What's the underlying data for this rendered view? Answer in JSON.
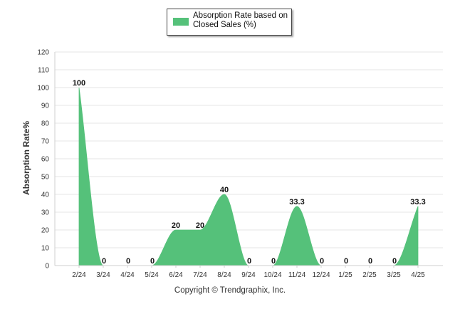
{
  "chart_data": {
    "type": "area",
    "categories": [
      "2/24",
      "3/24",
      "4/24",
      "5/24",
      "6/24",
      "7/24",
      "8/24",
      "9/24",
      "10/24",
      "11/24",
      "12/24",
      "1/25",
      "2/25",
      "3/25",
      "4/25"
    ],
    "series": [
      {
        "name": "Absorption Rate based on Closed Sales (%)",
        "values": [
          100,
          0,
          0,
          0,
          20,
          20,
          40,
          0,
          0,
          33.3,
          0,
          0,
          0,
          0,
          33.3
        ],
        "labels": [
          "100",
          "0",
          "0",
          "0",
          "20",
          "20",
          "40",
          "0",
          "0",
          "33.3",
          "0",
          "0",
          "0",
          "0",
          "33.3"
        ],
        "color": "#55c17a"
      }
    ],
    "title": "",
    "xlabel": "",
    "ylabel": "Absorption Rate%",
    "ylim": [
      0,
      120
    ],
    "yticks": [
      0,
      10,
      20,
      30,
      40,
      50,
      60,
      70,
      80,
      90,
      100,
      110,
      120
    ],
    "grid": true,
    "legend_position": "top-center"
  },
  "legend": {
    "label": "Absorption Rate based on Closed Sales (%)"
  },
  "footer": {
    "copyright": "Copyright © Trendgraphix, Inc."
  }
}
